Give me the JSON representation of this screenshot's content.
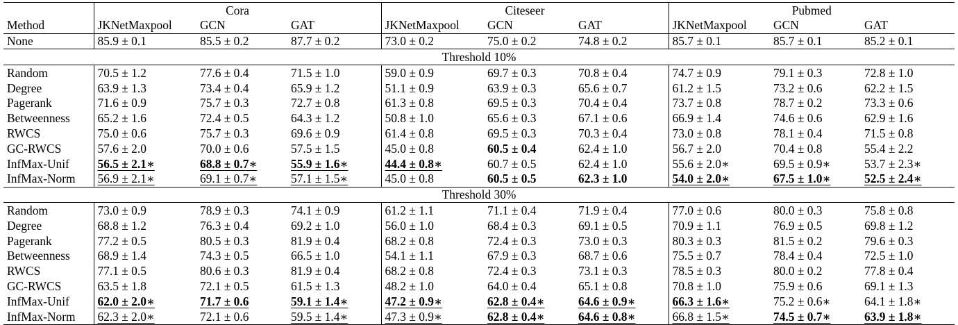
{
  "header": {
    "method_label": "Method",
    "groups": [
      "Cora",
      "Citeseer",
      "Pubmed"
    ],
    "columns": [
      "JKNetMaxpool",
      "GCN",
      "GAT",
      "JKNetMaxpool",
      "GCN",
      "GAT",
      "JKNetMaxpool",
      "GCN",
      "GAT"
    ]
  },
  "none_row": {
    "method": "None",
    "cells": [
      {
        "text": "85.9 ± 0.1"
      },
      {
        "text": "85.5 ± 0.2"
      },
      {
        "text": "87.7 ± 0.2"
      },
      {
        "text": "73.0 ± 0.2"
      },
      {
        "text": "75.0 ± 0.2"
      },
      {
        "text": "74.8 ± 0.2"
      },
      {
        "text": "85.7 ± 0.1"
      },
      {
        "text": "85.7 ± 0.1"
      },
      {
        "text": "85.2 ± 0.1"
      }
    ]
  },
  "sections": [
    {
      "title": "Threshold 10%",
      "rows": [
        {
          "method": "Random",
          "cells": [
            {
              "text": "70.5 ± 1.2"
            },
            {
              "text": "77.6 ± 0.4"
            },
            {
              "text": "71.5 ± 1.0"
            },
            {
              "text": "59.0 ± 0.9"
            },
            {
              "text": "69.7 ± 0.3"
            },
            {
              "text": "70.8 ± 0.4"
            },
            {
              "text": "74.7 ± 0.9"
            },
            {
              "text": "79.1 ± 0.3"
            },
            {
              "text": "72.8 ± 1.0"
            }
          ]
        },
        {
          "method": "Degree",
          "cells": [
            {
              "text": "63.9 ± 1.3"
            },
            {
              "text": "73.4 ± 0.4"
            },
            {
              "text": "65.9 ± 1.2"
            },
            {
              "text": "51.1 ± 0.9"
            },
            {
              "text": "63.9 ± 0.3"
            },
            {
              "text": "65.6 ± 0.7"
            },
            {
              "text": "61.2 ± 1.5"
            },
            {
              "text": "73.2 ± 0.6"
            },
            {
              "text": "62.2 ± 1.5"
            }
          ]
        },
        {
          "method": "Pagerank",
          "cells": [
            {
              "text": "71.6 ± 0.9"
            },
            {
              "text": "75.7 ± 0.3"
            },
            {
              "text": "72.7 ± 0.8"
            },
            {
              "text": "61.3 ± 0.8"
            },
            {
              "text": "69.5 ± 0.3"
            },
            {
              "text": "70.4 ± 0.4"
            },
            {
              "text": "73.7 ± 0.8"
            },
            {
              "text": "78.7 ± 0.2"
            },
            {
              "text": "73.3 ± 0.6"
            }
          ]
        },
        {
          "method": "Betweenness",
          "cells": [
            {
              "text": "65.2 ± 1.6"
            },
            {
              "text": "72.4 ± 0.5"
            },
            {
              "text": "64.3 ± 1.2"
            },
            {
              "text": "50.8 ± 1.0"
            },
            {
              "text": "65.6 ± 0.3"
            },
            {
              "text": "67.1 ± 0.6"
            },
            {
              "text": "66.9 ± 1.4"
            },
            {
              "text": "74.6 ± 0.6"
            },
            {
              "text": "62.9 ± 1.6"
            }
          ]
        },
        {
          "method": "RWCS",
          "cells": [
            {
              "text": "75.0 ± 0.6"
            },
            {
              "text": "75.7 ± 0.3"
            },
            {
              "text": "69.6 ± 0.9"
            },
            {
              "text": "61.4 ± 0.8"
            },
            {
              "text": "69.5 ± 0.3"
            },
            {
              "text": "70.3 ± 0.4"
            },
            {
              "text": "73.0 ± 0.8"
            },
            {
              "text": "78.1 ± 0.4"
            },
            {
              "text": "71.5 ± 0.8"
            }
          ]
        },
        {
          "method": "GC-RWCS",
          "cells": [
            {
              "text": "57.6 ± 2.0"
            },
            {
              "text": "70.0 ± 0.6"
            },
            {
              "text": "57.5 ± 1.5"
            },
            {
              "text": "45.0 ± 0.8"
            },
            {
              "text": "60.5 ± 0.4",
              "bold": true
            },
            {
              "text": "62.4 ± 1.0"
            },
            {
              "text": "56.7 ± 2.0"
            },
            {
              "text": "70.4 ± 0.8"
            },
            {
              "text": "55.4 ± 2.2"
            }
          ]
        },
        {
          "method": "InfMax-Unif",
          "cells": [
            {
              "text": "56.5 ± 2.1∗",
              "bold": true,
              "underline": true
            },
            {
              "text": "68.8 ± 0.7∗",
              "bold": true,
              "underline": true
            },
            {
              "text": "55.9 ± 1.6∗",
              "bold": true,
              "underline": true
            },
            {
              "text": "44.4 ± 0.8∗",
              "bold": true,
              "underline": true
            },
            {
              "text": "60.7 ± 0.5"
            },
            {
              "text": "62.4 ± 1.0"
            },
            {
              "text": "55.6 ± 2.0∗"
            },
            {
              "text": "69.5 ± 0.9∗"
            },
            {
              "text": "53.7 ± 2.3∗"
            }
          ]
        },
        {
          "method": "InfMax-Norm",
          "cells": [
            {
              "text": "56.9 ± 2.1∗",
              "underline": true
            },
            {
              "text": "69.1 ± 0.7∗",
              "underline": true
            },
            {
              "text": "57.1 ± 1.5∗",
              "underline": true
            },
            {
              "text": "45.0 ± 0.8"
            },
            {
              "text": "60.5 ± 0.5",
              "bold": true
            },
            {
              "text": "62.3 ± 1.0",
              "bold": true
            },
            {
              "text": "54.0 ± 2.0∗",
              "bold": true,
              "underline": true
            },
            {
              "text": "67.5 ± 1.0∗",
              "bold": true,
              "underline": true
            },
            {
              "text": "52.5 ± 2.4∗",
              "bold": true,
              "underline": true
            }
          ]
        }
      ]
    },
    {
      "title": "Threshold 30%",
      "rows": [
        {
          "method": "Random",
          "cells": [
            {
              "text": "73.0 ± 0.9"
            },
            {
              "text": "78.9 ± 0.3"
            },
            {
              "text": "74.1 ± 0.9"
            },
            {
              "text": "61.2 ± 1.1"
            },
            {
              "text": "71.1 ± 0.4"
            },
            {
              "text": "71.9 ± 0.4"
            },
            {
              "text": "77.0 ± 0.6"
            },
            {
              "text": "80.0 ± 0.3"
            },
            {
              "text": "75.8 ± 0.8"
            }
          ]
        },
        {
          "method": "Degree",
          "cells": [
            {
              "text": "68.8 ± 1.2"
            },
            {
              "text": "76.3 ± 0.4"
            },
            {
              "text": "69.2 ± 1.0"
            },
            {
              "text": "56.0 ± 1.0"
            },
            {
              "text": "68.4 ± 0.3"
            },
            {
              "text": "69.1 ± 0.5"
            },
            {
              "text": "70.9 ± 1.1"
            },
            {
              "text": "76.9 ± 0.5"
            },
            {
              "text": "69.8 ± 1.2"
            }
          ]
        },
        {
          "method": "Pagerank",
          "cells": [
            {
              "text": "77.2 ± 0.5"
            },
            {
              "text": "80.5 ± 0.3"
            },
            {
              "text": "81.9 ± 0.4"
            },
            {
              "text": "68.2 ± 0.8"
            },
            {
              "text": "72.4 ± 0.3"
            },
            {
              "text": "73.0 ± 0.3"
            },
            {
              "text": "80.3 ± 0.3"
            },
            {
              "text": "81.5 ± 0.2"
            },
            {
              "text": "79.6 ± 0.3"
            }
          ]
        },
        {
          "method": "Betweenness",
          "cells": [
            {
              "text": "68.9 ± 1.4"
            },
            {
              "text": "74.3 ± 0.5"
            },
            {
              "text": "66.5 ± 1.0"
            },
            {
              "text": "54.1 ± 1.1"
            },
            {
              "text": "67.9 ± 0.3"
            },
            {
              "text": "68.7 ± 0.6"
            },
            {
              "text": "75.5 ± 0.7"
            },
            {
              "text": "78.4 ± 0.4"
            },
            {
              "text": "72.5 ± 1.0"
            }
          ]
        },
        {
          "method": "RWCS",
          "cells": [
            {
              "text": "77.1 ± 0.5"
            },
            {
              "text": "80.6 ± 0.3"
            },
            {
              "text": "81.9 ± 0.4"
            },
            {
              "text": "68.2 ± 0.8"
            },
            {
              "text": "72.4 ± 0.3"
            },
            {
              "text": "73.1 ± 0.3"
            },
            {
              "text": "78.5 ± 0.3"
            },
            {
              "text": "80.0 ± 0.2"
            },
            {
              "text": "77.8 ± 0.4"
            }
          ]
        },
        {
          "method": "GC-RWCS",
          "cells": [
            {
              "text": "63.5 ± 1.8"
            },
            {
              "text": "72.1 ± 0.5"
            },
            {
              "text": "61.5 ± 1.3"
            },
            {
              "text": "48.2 ± 1.0"
            },
            {
              "text": "64.0 ± 0.4"
            },
            {
              "text": "65.1 ± 0.8"
            },
            {
              "text": "70.8 ± 1.0"
            },
            {
              "text": "75.9 ± 0.6"
            },
            {
              "text": "69.1 ± 1.3"
            }
          ]
        },
        {
          "method": "InfMax-Unif",
          "cells": [
            {
              "text": "62.0 ± 2.0∗",
              "bold": true,
              "underline": true
            },
            {
              "text": "71.7 ± 0.6",
              "bold": true,
              "underline": true
            },
            {
              "text": "59.1 ± 1.4∗",
              "bold": true,
              "underline": true
            },
            {
              "text": "47.2 ± 0.9∗",
              "bold": true,
              "underline": true
            },
            {
              "text": "62.8 ± 0.4∗",
              "bold": true,
              "underline": true
            },
            {
              "text": "64.6 ± 0.9∗",
              "bold": true,
              "underline": true
            },
            {
              "text": "66.3 ± 1.6∗",
              "bold": true,
              "underline": true
            },
            {
              "text": "75.2 ± 0.6∗"
            },
            {
              "text": "64.1 ± 1.8∗"
            }
          ]
        },
        {
          "method": "InfMax-Norm",
          "cells": [
            {
              "text": "62.3 ± 2.0∗",
              "underline": true
            },
            {
              "text": "72.1 ± 0.6"
            },
            {
              "text": "59.5 ± 1.4∗",
              "underline": true
            },
            {
              "text": "47.3 ± 0.9∗",
              "underline": true
            },
            {
              "text": "62.8 ± 0.4∗",
              "bold": true,
              "underline": true
            },
            {
              "text": "64.6 ± 0.8∗",
              "bold": true,
              "underline": true
            },
            {
              "text": "66.8 ± 1.5∗",
              "underline": true
            },
            {
              "text": "74.5 ± 0.7∗",
              "bold": true,
              "underline": true
            },
            {
              "text": "63.9 ± 1.8∗",
              "bold": true,
              "underline": true
            }
          ]
        }
      ]
    }
  ]
}
